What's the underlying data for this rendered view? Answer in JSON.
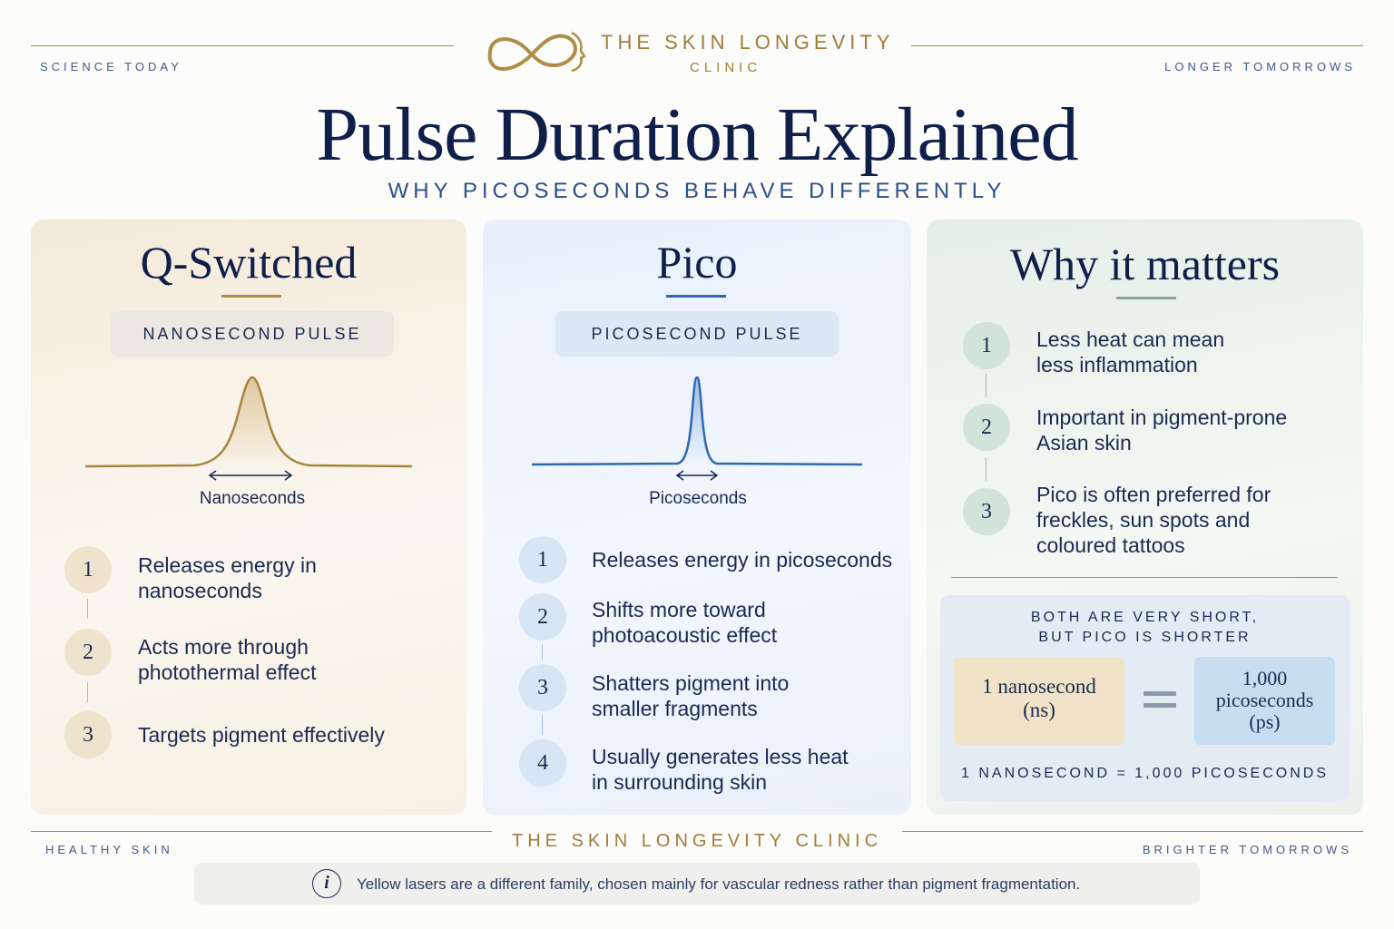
{
  "header": {
    "left_tag": "SCIENCE TODAY",
    "right_tag": "LONGER TOMORROWS",
    "brand_line1": "THE SKIN LONGEVITY",
    "brand_line2": "CLINIC",
    "logo_icon": "infinity-face-logo"
  },
  "title": "Pulse Duration Explained",
  "subtitle": "WHY PICOSECONDS BEHAVE DIFFERENTLY",
  "qswitched": {
    "title": "Q-Switched",
    "pill": "NANOSECOND PULSE",
    "curve_label": "Nanoseconds",
    "items": [
      {
        "num": "1",
        "line1": "Releases energy in",
        "line2": "nanoseconds"
      },
      {
        "num": "2",
        "line1": "Acts more through",
        "line2": "photothermal effect"
      },
      {
        "num": "3",
        "line1": "Targets pigment effectively",
        "line2": ""
      }
    ],
    "color": "#b08d47"
  },
  "pico": {
    "title": "Pico",
    "pill": "PICOSECOND PULSE",
    "curve_label": "Picoseconds",
    "items": [
      {
        "num": "1",
        "line1": "Releases energy in picoseconds",
        "line2": ""
      },
      {
        "num": "2",
        "line1": "Shifts more toward",
        "line2": "photoacoustic effect"
      },
      {
        "num": "3",
        "line1": "Shatters pigment into",
        "line2": "smaller fragments"
      },
      {
        "num": "4",
        "line1": "Usually generates less heat",
        "line2": "in surrounding skin"
      }
    ],
    "color": "#2f68b0"
  },
  "matters": {
    "title": "Why it matters",
    "items": [
      {
        "num": "1",
        "line1": "Less heat can mean",
        "line2": "less inflammation",
        "line3": ""
      },
      {
        "num": "2",
        "line1": "Important in pigment-prone",
        "line2": "Asian skin",
        "line3": ""
      },
      {
        "num": "3",
        "line1": "Pico is often preferred for",
        "line2": "freckles, sun spots and",
        "line3": "coloured tattoos"
      }
    ],
    "color": "#8aa79a"
  },
  "equivalence": {
    "head_line1": "BOTH ARE VERY SHORT,",
    "head_line2": "BUT PICO IS SHORTER",
    "left_line1": "1 nanosecond",
    "left_line2": "(ns)",
    "right_line1": "1,000",
    "right_line2": "picoseconds",
    "right_line3": "(ps)",
    "equals_icon": "equals-icon",
    "footer": "1 NANOSECOND = 1,000 PICOSECONDS"
  },
  "footer": {
    "left_tag": "HEALTHY SKIN",
    "center": "THE SKIN LONGEVITY CLINIC",
    "right_tag": "BRIGHTER TOMORROWS",
    "info_icon": "info-icon",
    "info_glyph": "i",
    "note": "Yellow lasers are a different family, chosen mainly for vascular redness rather than pigment fragmentation."
  }
}
